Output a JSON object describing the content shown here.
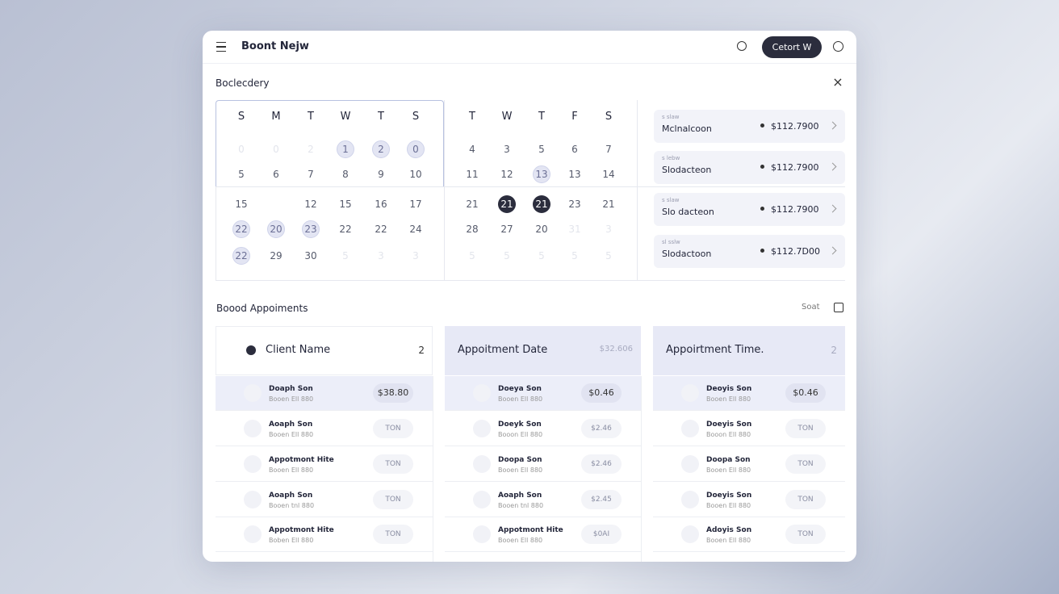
{
  "header": {
    "title": "Boont Nejw",
    "button": "Cetort W"
  },
  "calendar": {
    "title": "Boclecdery",
    "months": [
      {
        "weekdays": [
          "S",
          "M",
          "T",
          "W",
          "T",
          "S"
        ],
        "weeks": [
          [
            "0",
            "0",
            "2",
            "1",
            "2",
            "0"
          ],
          [
            "5",
            "6",
            "7",
            "8",
            "9",
            "10"
          ],
          [
            "15",
            null,
            "12",
            "15",
            "16",
            "17"
          ],
          [
            "22",
            "20",
            "23",
            "22",
            "22",
            "24"
          ],
          [
            "22",
            "29",
            "30",
            "5",
            "3",
            "3"
          ]
        ]
      },
      {
        "weekdays": [
          "T",
          "W",
          "T",
          "F",
          "S"
        ],
        "weeks": [
          [
            "4",
            "3",
            "5",
            "6",
            "7"
          ],
          [
            "11",
            "12",
            "13",
            "13",
            "14"
          ],
          [
            "21",
            "21",
            "21",
            "23",
            "21"
          ],
          [
            "28",
            "27",
            "20",
            "31",
            "3"
          ],
          [
            "5",
            "5",
            "5",
            "5",
            "5"
          ]
        ]
      }
    ]
  },
  "summary_cards": [
    {
      "label": "s slaw",
      "name": "Mclnalcoon",
      "amount": "$112.7900"
    },
    {
      "label": "s lebw",
      "name": "Slodacteon",
      "amount": "$112.7900"
    },
    {
      "label": "s slaw",
      "name": "Slo dacteon",
      "amount": "$112.7900"
    },
    {
      "label": "sl sslw",
      "name": "Slodactoon",
      "amount": "$112.7D00"
    }
  ],
  "appointments": {
    "title": "Boood Appoiments",
    "sort": "Soat",
    "columns": [
      {
        "header": "Client Name",
        "badge": "2",
        "rows": [
          {
            "name": "Doaph Son",
            "detail": "Booen Ell 880",
            "tag": "$38.80"
          },
          {
            "name": "Aoaph Son",
            "detail": "Booen Ell 880",
            "tag": "TON"
          },
          {
            "name": "Appotmont Hite",
            "detail": "Booen Ell 880",
            "tag": "TON"
          },
          {
            "name": "Aoaph Son",
            "detail": "Booen tnl 880",
            "tag": "TON"
          },
          {
            "name": "Appotmont Hite",
            "detail": "Boben Ell 880",
            "tag": "TON"
          }
        ]
      },
      {
        "header": "Appoitment Date",
        "badge": "$32.606",
        "rows": [
          {
            "name": "Doeya Son",
            "detail": "Booen Ell 880",
            "tag": "$0.46"
          },
          {
            "name": "Doeyk Son",
            "detail": "Booon Ell 880",
            "tag": "$2.46"
          },
          {
            "name": "Doopa Son",
            "detail": "Booen Ell 880",
            "tag": "$2.46"
          },
          {
            "name": "Aoaph Son",
            "detail": "Booen tnl 880",
            "tag": "$2.45"
          },
          {
            "name": "Appotmont Hite",
            "detail": "Booen Ell 880",
            "tag": "$0AI"
          }
        ]
      },
      {
        "header": "Appoirtment Time.",
        "badge": "2",
        "rows": [
          {
            "name": "Deoyis Son",
            "detail": "Booen Ell 880",
            "tag": "$0.46"
          },
          {
            "name": "Doeyis Son",
            "detail": "Booon Ell 880",
            "tag": "TON"
          },
          {
            "name": "Doopa Son",
            "detail": "Booen Ell 880",
            "tag": "TON"
          },
          {
            "name": "Doeyis Son",
            "detail": "Booen Ell 880",
            "tag": "TON"
          },
          {
            "name": "Adoyis Son",
            "detail": "Booen Ell 880",
            "tag": "TON"
          }
        ]
      }
    ]
  }
}
